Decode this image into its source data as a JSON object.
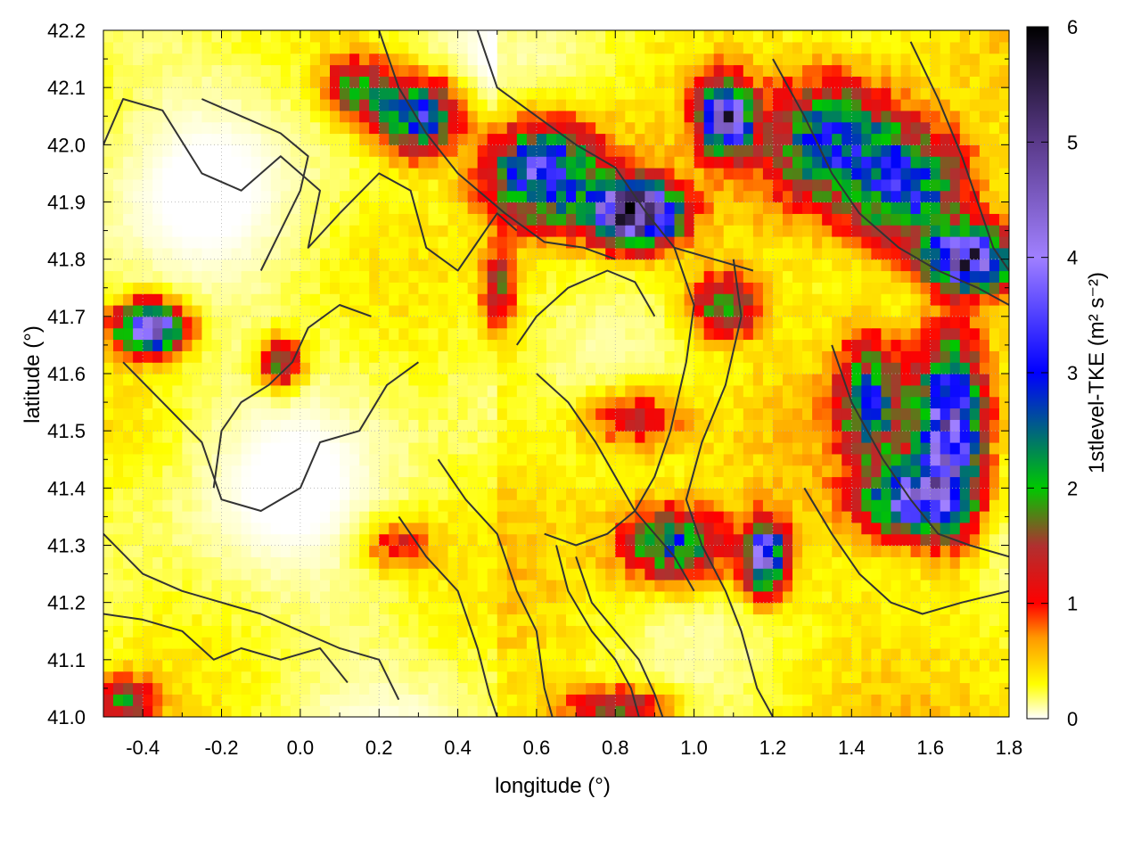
{
  "chart_data": {
    "type": "heatmap",
    "xlabel": "longitude (°)",
    "ylabel": "latitude (°)",
    "colorbar_label": "1stlevel-TKE (m² s⁻²)",
    "xlim": [
      -0.5,
      1.8
    ],
    "ylim": [
      41.0,
      42.2
    ],
    "x_ticks": [
      -0.4,
      -0.2,
      0.0,
      0.2,
      0.4,
      0.6,
      0.8,
      1.0,
      1.2,
      1.4,
      1.6,
      1.8
    ],
    "x_tick_labels": [
      "-0.4",
      "-0.2",
      "0.0",
      "0.2",
      "0.4",
      "0.6",
      "0.8",
      "1.0",
      "1.2",
      "1.4",
      "1.6",
      "1.8"
    ],
    "y_ticks": [
      41.0,
      41.1,
      41.2,
      41.3,
      41.4,
      41.5,
      41.6,
      41.7,
      41.8,
      41.9,
      42.0,
      42.1,
      42.2
    ],
    "y_tick_labels": [
      "41.0",
      "41.1",
      "41.2",
      "41.3",
      "41.4",
      "41.5",
      "41.6",
      "41.7",
      "41.8",
      "41.9",
      "42.0",
      "42.1",
      "42.2"
    ],
    "colorbar_range": [
      0,
      6
    ],
    "colorbar_ticks": [
      0,
      1,
      2,
      3,
      4,
      5,
      6
    ],
    "colorbar_tick_labels": [
      "0",
      "1",
      "2",
      "3",
      "4",
      "5",
      "6"
    ],
    "colormap": [
      {
        "value": 0.0,
        "color": "#ffffff"
      },
      {
        "value": 0.3,
        "color": "#ffff00"
      },
      {
        "value": 0.7,
        "color": "#ff9900"
      },
      {
        "value": 1.0,
        "color": "#ff0000"
      },
      {
        "value": 1.5,
        "color": "#b03030"
      },
      {
        "value": 2.0,
        "color": "#00c800"
      },
      {
        "value": 3.0,
        "color": "#0000ff"
      },
      {
        "value": 4.0,
        "color": "#a080ff"
      },
      {
        "value": 5.0,
        "color": "#5a3a8a"
      },
      {
        "value": 6.0,
        "color": "#000000"
      }
    ],
    "contour_color": "#333333",
    "grid": true,
    "hotspots": [
      {
        "x": 0.85,
        "y": 41.88,
        "tke": 5.8,
        "rx": 0.1,
        "ry": 0.05
      },
      {
        "x": 0.62,
        "y": 41.95,
        "tke": 3.2,
        "rx": 0.14,
        "ry": 0.08
      },
      {
        "x": 0.3,
        "y": 42.05,
        "tke": 2.8,
        "rx": 0.1,
        "ry": 0.06
      },
      {
        "x": 0.15,
        "y": 42.1,
        "tke": 1.8,
        "rx": 0.08,
        "ry": 0.05
      },
      {
        "x": 1.08,
        "y": 42.05,
        "tke": 4.2,
        "rx": 0.06,
        "ry": 0.06
      },
      {
        "x": 1.35,
        "y": 42.0,
        "tke": 2.4,
        "rx": 0.15,
        "ry": 0.1
      },
      {
        "x": 1.55,
        "y": 41.92,
        "tke": 2.6,
        "rx": 0.14,
        "ry": 0.1
      },
      {
        "x": 1.7,
        "y": 41.8,
        "tke": 4.5,
        "rx": 0.1,
        "ry": 0.05
      },
      {
        "x": 1.65,
        "y": 41.5,
        "tke": 3.8,
        "rx": 0.08,
        "ry": 0.15
      },
      {
        "x": 1.55,
        "y": 41.38,
        "tke": 3.0,
        "rx": 0.12,
        "ry": 0.06
      },
      {
        "x": 1.45,
        "y": 41.55,
        "tke": 2.2,
        "rx": 0.08,
        "ry": 0.1
      },
      {
        "x": -0.38,
        "y": 41.68,
        "tke": 4.0,
        "rx": 0.08,
        "ry": 0.04
      },
      {
        "x": -0.05,
        "y": 41.62,
        "tke": 1.6,
        "rx": 0.05,
        "ry": 0.04
      },
      {
        "x": 1.08,
        "y": 41.72,
        "tke": 1.8,
        "rx": 0.08,
        "ry": 0.05
      },
      {
        "x": 0.95,
        "y": 41.3,
        "tke": 2.2,
        "rx": 0.12,
        "ry": 0.06
      },
      {
        "x": 1.18,
        "y": 41.28,
        "tke": 3.5,
        "rx": 0.05,
        "ry": 0.06
      },
      {
        "x": 0.5,
        "y": 41.75,
        "tke": 1.2,
        "rx": 0.04,
        "ry": 0.07
      },
      {
        "x": 0.85,
        "y": 41.52,
        "tke": 1.0,
        "rx": 0.12,
        "ry": 0.05
      },
      {
        "x": 0.25,
        "y": 41.3,
        "tke": 0.9,
        "rx": 0.08,
        "ry": 0.04
      },
      {
        "x": 0.8,
        "y": 41.02,
        "tke": 1.5,
        "rx": 0.12,
        "ry": 0.03
      },
      {
        "x": -0.45,
        "y": 41.03,
        "tke": 1.4,
        "rx": 0.08,
        "ry": 0.04
      }
    ],
    "contours": [
      [
        [
          -0.5,
          42.0
        ],
        [
          -0.45,
          42.08
        ],
        [
          -0.35,
          42.06
        ],
        [
          -0.25,
          41.95
        ],
        [
          -0.15,
          41.92
        ],
        [
          -0.05,
          41.98
        ],
        [
          0.05,
          41.92
        ],
        [
          0.02,
          41.82
        ],
        [
          0.1,
          41.88
        ],
        [
          0.2,
          41.95
        ],
        [
          0.28,
          41.92
        ],
        [
          0.32,
          41.82
        ],
        [
          0.4,
          41.78
        ],
        [
          0.5,
          41.88
        ],
        [
          0.55,
          41.85
        ]
      ],
      [
        [
          -0.45,
          41.62
        ],
        [
          -0.35,
          41.55
        ],
        [
          -0.25,
          41.48
        ],
        [
          -0.2,
          41.38
        ],
        [
          -0.1,
          41.36
        ],
        [
          0.0,
          41.4
        ],
        [
          0.05,
          41.48
        ],
        [
          0.15,
          41.5
        ],
        [
          0.22,
          41.58
        ],
        [
          0.3,
          41.62
        ]
      ],
      [
        [
          -0.5,
          41.32
        ],
        [
          -0.4,
          41.25
        ],
        [
          -0.3,
          41.22
        ],
        [
          -0.2,
          41.2
        ],
        [
          -0.1,
          41.18
        ],
        [
          0.0,
          41.15
        ],
        [
          0.1,
          41.12
        ],
        [
          0.2,
          41.1
        ],
        [
          0.25,
          41.03
        ]
      ],
      [
        [
          -0.5,
          41.18
        ],
        [
          -0.4,
          41.17
        ],
        [
          -0.3,
          41.15
        ],
        [
          -0.22,
          41.1
        ],
        [
          -0.15,
          41.12
        ],
        [
          -0.05,
          41.1
        ],
        [
          0.05,
          41.12
        ],
        [
          0.12,
          41.06
        ]
      ],
      [
        [
          0.2,
          42.2
        ],
        [
          0.25,
          42.1
        ],
        [
          0.32,
          42.02
        ],
        [
          0.4,
          41.95
        ],
        [
          0.52,
          41.88
        ],
        [
          0.62,
          41.83
        ],
        [
          0.72,
          41.82
        ],
        [
          0.8,
          41.8
        ]
      ],
      [
        [
          0.45,
          42.2
        ],
        [
          0.5,
          42.1
        ],
        [
          0.6,
          42.05
        ],
        [
          0.7,
          42.0
        ],
        [
          0.8,
          41.96
        ],
        [
          0.88,
          41.88
        ],
        [
          0.95,
          41.82
        ],
        [
          1.05,
          41.8
        ],
        [
          1.15,
          41.78
        ]
      ],
      [
        [
          0.95,
          41.82
        ],
        [
          1.0,
          41.72
        ],
        [
          0.98,
          41.62
        ],
        [
          0.94,
          41.5
        ],
        [
          0.9,
          41.42
        ],
        [
          0.85,
          41.36
        ],
        [
          0.78,
          41.32
        ],
        [
          0.7,
          41.3
        ],
        [
          0.62,
          41.32
        ]
      ],
      [
        [
          1.1,
          41.8
        ],
        [
          1.12,
          41.7
        ],
        [
          1.08,
          41.58
        ],
        [
          1.02,
          41.48
        ],
        [
          0.98,
          41.38
        ],
        [
          1.02,
          41.3
        ],
        [
          1.08,
          41.22
        ],
        [
          1.12,
          41.15
        ],
        [
          1.16,
          41.05
        ],
        [
          1.2,
          41.0
        ]
      ],
      [
        [
          0.65,
          41.3
        ],
        [
          0.68,
          41.22
        ],
        [
          0.74,
          41.15
        ],
        [
          0.8,
          41.1
        ],
        [
          0.84,
          41.05
        ],
        [
          0.86,
          41.0
        ]
      ],
      [
        [
          0.7,
          41.28
        ],
        [
          0.74,
          41.2
        ],
        [
          0.8,
          41.15
        ],
        [
          0.86,
          41.1
        ],
        [
          0.9,
          41.04
        ],
        [
          0.92,
          41.0
        ]
      ],
      [
        [
          1.2,
          42.15
        ],
        [
          1.28,
          42.05
        ],
        [
          1.35,
          41.95
        ],
        [
          1.42,
          41.88
        ],
        [
          1.52,
          41.82
        ],
        [
          1.62,
          41.78
        ],
        [
          1.72,
          41.75
        ],
        [
          1.8,
          41.72
        ]
      ],
      [
        [
          1.35,
          41.65
        ],
        [
          1.4,
          41.55
        ],
        [
          1.48,
          41.45
        ],
        [
          1.55,
          41.38
        ],
        [
          1.62,
          41.32
        ],
        [
          1.7,
          41.3
        ],
        [
          1.8,
          41.28
        ]
      ],
      [
        [
          1.28,
          41.4
        ],
        [
          1.35,
          41.32
        ],
        [
          1.42,
          41.25
        ],
        [
          1.5,
          41.2
        ],
        [
          1.58,
          41.18
        ],
        [
          1.68,
          41.2
        ],
        [
          1.8,
          41.22
        ]
      ],
      [
        [
          0.35,
          41.45
        ],
        [
          0.42,
          41.38
        ],
        [
          0.5,
          41.32
        ],
        [
          0.55,
          41.22
        ],
        [
          0.6,
          41.15
        ],
        [
          0.62,
          41.05
        ],
        [
          0.64,
          41.0
        ]
      ],
      [
        [
          0.25,
          41.35
        ],
        [
          0.32,
          41.28
        ],
        [
          0.4,
          41.22
        ],
        [
          0.45,
          41.12
        ],
        [
          0.48,
          41.04
        ],
        [
          0.5,
          41.0
        ]
      ],
      [
        [
          0.6,
          41.6
        ],
        [
          0.68,
          41.55
        ],
        [
          0.75,
          41.48
        ],
        [
          0.8,
          41.42
        ],
        [
          0.85,
          41.36
        ],
        [
          0.9,
          41.32
        ],
        [
          0.95,
          41.28
        ],
        [
          1.0,
          41.22
        ]
      ],
      [
        [
          -0.22,
          41.4
        ],
        [
          -0.2,
          41.5
        ],
        [
          -0.15,
          41.55
        ],
        [
          -0.08,
          41.58
        ],
        [
          -0.02,
          41.62
        ],
        [
          0.02,
          41.68
        ],
        [
          0.1,
          41.72
        ],
        [
          0.18,
          41.7
        ]
      ],
      [
        [
          -0.1,
          41.78
        ],
        [
          -0.05,
          41.85
        ],
        [
          0.0,
          41.92
        ],
        [
          0.02,
          41.98
        ],
        [
          -0.05,
          42.02
        ],
        [
          -0.15,
          42.05
        ],
        [
          -0.25,
          42.08
        ]
      ],
      [
        [
          0.55,
          41.65
        ],
        [
          0.6,
          41.7
        ],
        [
          0.68,
          41.75
        ],
        [
          0.78,
          41.78
        ],
        [
          0.85,
          41.76
        ],
        [
          0.9,
          41.7
        ]
      ],
      [
        [
          1.55,
          42.18
        ],
        [
          1.62,
          42.08
        ],
        [
          1.68,
          41.98
        ],
        [
          1.72,
          41.9
        ],
        [
          1.76,
          41.82
        ],
        [
          1.8,
          41.78
        ]
      ]
    ]
  }
}
